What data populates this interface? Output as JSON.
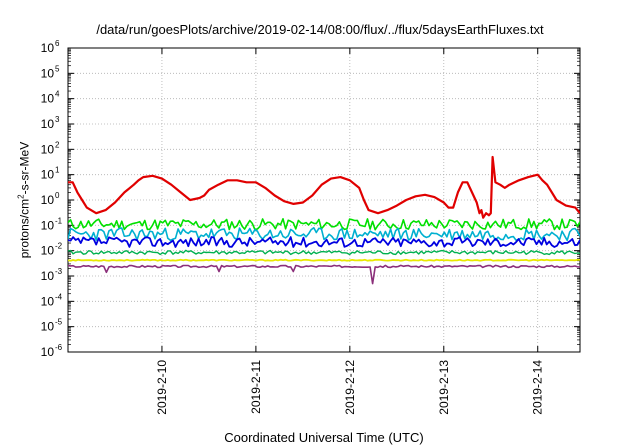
{
  "chart_data": {
    "type": "line",
    "title": "/data/run/goesPlots/archive/2019-02-14/08:00/flux/../flux/5daysEarthFluxes.txt",
    "xlabel": "Coordinated Universal Time (UTC)",
    "ylabel": "protons/cm2-s-sr-MeV",
    "ylabel_parts": {
      "pre": "protons/cm",
      "sup": "2",
      "post": "-s-sr-MeV"
    },
    "y_scale": "log",
    "ylim_exp": [
      -6,
      6
    ],
    "y_ticks": [
      {
        "base": "10",
        "exp": "6"
      },
      {
        "base": "10",
        "exp": "5"
      },
      {
        "base": "10",
        "exp": "4"
      },
      {
        "base": "10",
        "exp": "3"
      },
      {
        "base": "10",
        "exp": "2"
      },
      {
        "base": "10",
        "exp": "1"
      },
      {
        "base": "10",
        "exp": "0"
      },
      {
        "base": "10",
        "exp": "-1"
      },
      {
        "base": "10",
        "exp": "-2"
      },
      {
        "base": "10",
        "exp": "-3"
      },
      {
        "base": "10",
        "exp": "-4"
      },
      {
        "base": "10",
        "exp": "-5"
      },
      {
        "base": "10",
        "exp": "-6"
      }
    ],
    "xlim_days": [
      0,
      5.45
    ],
    "x_ticks": [
      {
        "label": "2019-2-10",
        "day": 1.0
      },
      {
        "label": "2019-2-11",
        "day": 2.0
      },
      {
        "label": "2019-2-12",
        "day": 3.0
      },
      {
        "label": "2019-2-13",
        "day": 4.0
      },
      {
        "label": "2019-2-14",
        "day": 5.0
      }
    ],
    "grid": true,
    "series": [
      {
        "color": "#e00000",
        "width": 2.2,
        "x": [
          0,
          0.05,
          0.1,
          0.15,
          0.2,
          0.3,
          0.4,
          0.5,
          0.6,
          0.7,
          0.75,
          0.8,
          0.9,
          1.0,
          1.1,
          1.2,
          1.3,
          1.4,
          1.45,
          1.5,
          1.6,
          1.7,
          1.8,
          1.9,
          2.0,
          2.1,
          2.2,
          2.3,
          2.4,
          2.5,
          2.6,
          2.7,
          2.8,
          2.9,
          3.0,
          3.1,
          3.15,
          3.2,
          3.3,
          3.4,
          3.5,
          3.6,
          3.7,
          3.8,
          3.9,
          4.0,
          4.05,
          4.1,
          4.15,
          4.2,
          4.25,
          4.3,
          4.35,
          4.38,
          4.4,
          4.42,
          4.45,
          4.48,
          4.5,
          4.52,
          4.55,
          4.6,
          4.65,
          4.7,
          4.8,
          4.9,
          5.0,
          5.05,
          5.1,
          5.2,
          5.3,
          5.4,
          5.45
        ],
        "y": [
          5,
          5,
          2,
          1,
          0.5,
          0.3,
          0.4,
          0.8,
          2,
          4,
          6,
          8,
          9,
          7,
          4,
          2,
          1,
          1.2,
          1.5,
          2.5,
          4,
          6,
          6,
          5,
          5,
          3,
          1.5,
          0.9,
          0.7,
          0.8,
          1.5,
          4,
          7,
          8,
          6,
          3,
          1,
          0.4,
          0.3,
          0.4,
          0.6,
          1,
          1.4,
          1.6,
          1.3,
          0.8,
          0.5,
          0.5,
          2,
          5,
          5,
          2,
          0.8,
          0.3,
          0.4,
          0.2,
          0.3,
          0.25,
          0.3,
          50,
          5,
          4,
          3,
          4,
          6,
          8,
          10,
          6,
          4,
          1,
          0.6,
          0.5,
          0.3
        ]
      },
      {
        "color": "#00e000",
        "width": 1.6,
        "base": 0.11,
        "amp": 0.22,
        "seed": 11
      },
      {
        "color": "#00b0d0",
        "width": 1.6,
        "base": 0.045,
        "amp": 0.25,
        "seed": 23
      },
      {
        "color": "#0000e0",
        "width": 1.8,
        "base": 0.022,
        "amp": 0.2,
        "seed": 37
      },
      {
        "color": "#00b050",
        "width": 1.4,
        "base": 0.0085,
        "amp": 0.08,
        "seed": 41
      },
      {
        "color": "#e8e800",
        "width": 1.8,
        "base": 0.0042,
        "amp": 0.02,
        "seed": 53
      },
      {
        "color": "#8b2f7a",
        "width": 1.6,
        "base": 0.0024,
        "amp": 0.04,
        "seed": 67,
        "dips": [
          [
            0.4,
            0.0014
          ],
          [
            1.6,
            0.0015
          ],
          [
            2.4,
            0.0015
          ],
          [
            3.25,
            0.0005
          ]
        ]
      }
    ]
  }
}
